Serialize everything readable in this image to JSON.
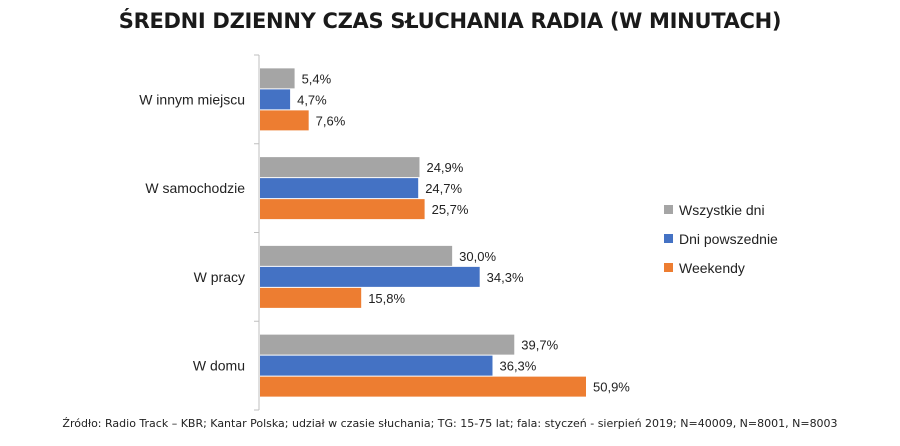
{
  "chart_data": {
    "type": "bar",
    "orientation": "horizontal",
    "title": "ŚREDNI DZIENNY CZAS SŁUCHANIA RADIA (W MINUTACH)",
    "categories": [
      "W innym miejscu",
      "W samochodzie",
      "W pracy",
      "W domu"
    ],
    "series": [
      {
        "name": "Wszystkie dni",
        "color": "#a5a5a5",
        "values": [
          5.4,
          24.9,
          30.0,
          39.7
        ],
        "labels": [
          "5,4%",
          "24,9%",
          "30,0%",
          "39,7%"
        ]
      },
      {
        "name": "Dni powszednie",
        "color": "#4472c4",
        "values": [
          4.7,
          24.7,
          34.3,
          36.3
        ],
        "labels": [
          "4,7%",
          "24,7%",
          "34,3%",
          "36,3%"
        ]
      },
      {
        "name": "Weekendy",
        "color": "#ed7d31",
        "values": [
          7.6,
          25.7,
          15.8,
          50.9
        ],
        "labels": [
          "7,6%",
          "25,7%",
          "15,8%",
          "50,9%"
        ]
      }
    ],
    "xlim": [
      0,
      55
    ],
    "grid": false,
    "legend": "right"
  },
  "source": "Źródło: Radio Track – KBR; Kantar Polska; udział w czasie słuchania; TG: 15-75 lat; fala: styczeń - sierpień 2019; N=40009, N=8001, N=8003"
}
